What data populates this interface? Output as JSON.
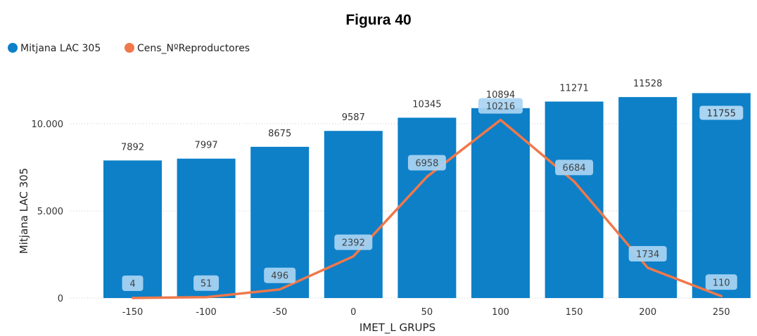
{
  "chart_data": {
    "type": "bar",
    "title": "Figura 40",
    "xlabel": "IMET_L GRUPS",
    "ylabel": "Mitjana LAC 305",
    "categories": [
      "-150",
      "-100",
      "-50",
      "0",
      "50",
      "100",
      "150",
      "200",
      "250"
    ],
    "ylim": [
      0,
      12000
    ],
    "y_ticks": [
      {
        "value": 0,
        "label": "0"
      },
      {
        "value": 5000,
        "label": "5.000"
      },
      {
        "value": 10000,
        "label": "10.000"
      }
    ],
    "grid": true,
    "legend_position": "top-left",
    "series": [
      {
        "name": "Mitjana LAC 305",
        "type": "bar",
        "color": "#0d80c8",
        "values": [
          7892,
          7997,
          8675,
          9587,
          10345,
          10894,
          11271,
          11528,
          11755
        ],
        "labels": [
          "7892",
          "7997",
          "8675",
          "9587",
          "10345",
          "10894",
          "11271",
          "11528",
          "11755"
        ]
      },
      {
        "name": "Cens_NºReproductores",
        "type": "line",
        "color": "#f0784a",
        "values": [
          4,
          51,
          496,
          2392,
          6958,
          10216,
          6684,
          1734,
          110
        ],
        "labels": [
          "4",
          "51",
          "496",
          "2392",
          "6958",
          "10216",
          "6684",
          "1734",
          "110"
        ]
      }
    ]
  }
}
